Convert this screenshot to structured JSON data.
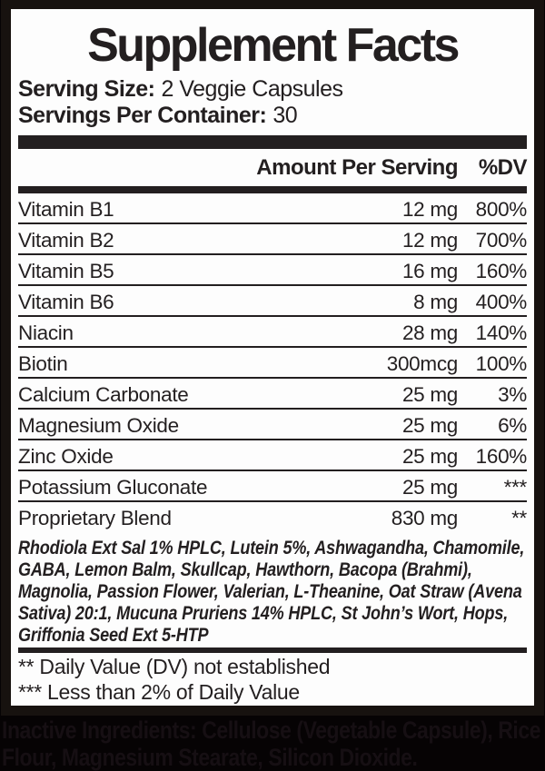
{
  "label": {
    "title": "Supplement Facts",
    "serving_size": {
      "label": "Serving Size:",
      "value": "2 Veggie Capsules"
    },
    "servings_per_container": {
      "label": "Servings Per Container:",
      "value": "30"
    },
    "columns": {
      "amount": "Amount Per Serving",
      "dv": "%DV"
    },
    "rows": [
      {
        "name": "Vitamin B1",
        "amount": "12 mg",
        "dv": "800%"
      },
      {
        "name": "Vitamin B2",
        "amount": "12 mg",
        "dv": "700%"
      },
      {
        "name": "Vitamin B5",
        "amount": "16 mg",
        "dv": "160%"
      },
      {
        "name": "Vitamin B6",
        "amount": "8 mg",
        "dv": "400%"
      },
      {
        "name": "Niacin",
        "amount": "28 mg",
        "dv": "140%"
      },
      {
        "name": "Biotin",
        "amount": "300mcg",
        "dv": "100%"
      },
      {
        "name": "Calcium Carbonate",
        "amount": "25 mg",
        "dv": "3%"
      },
      {
        "name": "Magnesium Oxide",
        "amount": "25 mg",
        "dv": "6%"
      },
      {
        "name": "Zinc Oxide",
        "amount": "25 mg",
        "dv": "160%"
      },
      {
        "name": "Potassium Gluconate",
        "amount": "25 mg",
        "dv": "***"
      },
      {
        "name": "Proprietary Blend",
        "amount": "830 mg",
        "dv": "**"
      }
    ],
    "blend_description": "Rhodiola Ext Sal 1% HPLC, Lutein 5%,  Ashwagandha, Chamomile, GABA, Lemon Balm, Skullcap, Hawthorn, Bacopa (Brahmi), Magnolia, Passion Flower, Valerian, L-Theanine, Oat Straw (Avena Sativa) 20:1, Mucuna Pruriens 14% HPLC, St John’s Wort, Hops, Griffonia Seed Ext 5-HTP",
    "footnotes": [
      "** Daily Value (DV) not established",
      "*** Less than 2% of Daily Value"
    ]
  },
  "inactive_ingredients": {
    "text": "Inactive Ingredients: Cellulose (Vegetable Capsule), Rice Flour, Magnesium Stearate, Silicon Dioxide."
  },
  "colors": {
    "ink": "#231f20",
    "panel": "#fdfdfd",
    "bg": "#060304",
    "frame": "#17120f",
    "hidden": "#160f13"
  }
}
